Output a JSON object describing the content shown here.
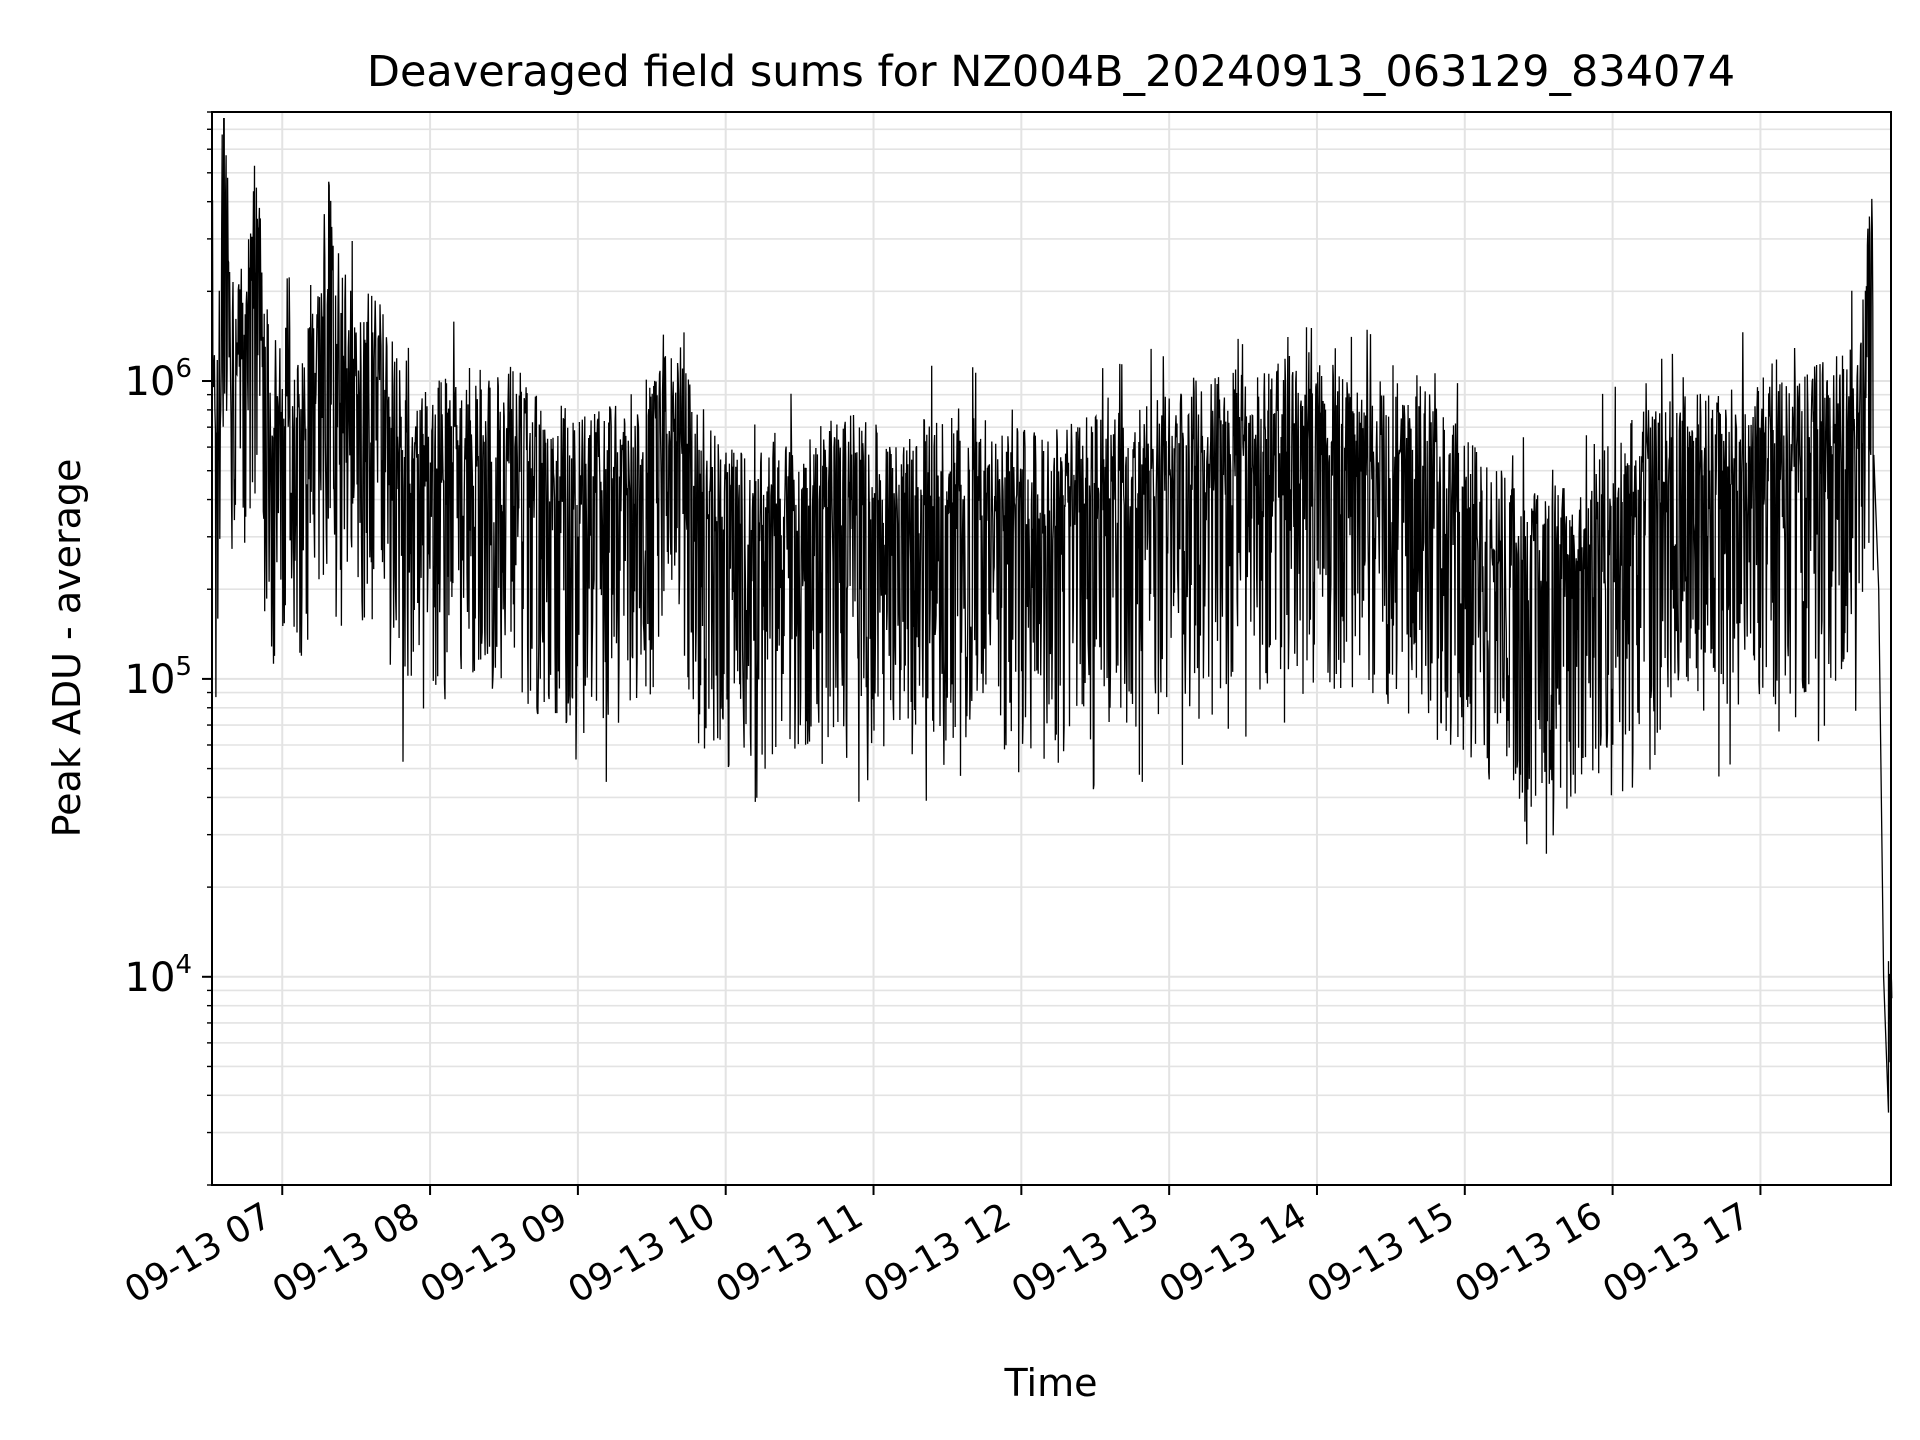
{
  "chart_data": {
    "type": "line",
    "title": "Deaveraged field sums for NZ004B_20240913_063129_834074",
    "xlabel": "Time",
    "ylabel": "Peak ADU - average",
    "yscale": "log",
    "ylim": [
      2000,
      8000000
    ],
    "xlim": [
      "09-13 06:31:29",
      "09-13 17:53:00"
    ],
    "grid": true,
    "legend": "none",
    "line_color": "#000000",
    "x_ticks": [
      {
        "label": "09-13 07",
        "hour": 7
      },
      {
        "label": "09-13 08",
        "hour": 8
      },
      {
        "label": "09-13 09",
        "hour": 9
      },
      {
        "label": "09-13 10",
        "hour": 10
      },
      {
        "label": "09-13 11",
        "hour": 11
      },
      {
        "label": "09-13 12",
        "hour": 12
      },
      {
        "label": "09-13 13",
        "hour": 13
      },
      {
        "label": "09-13 14",
        "hour": 14
      },
      {
        "label": "09-13 15",
        "hour": 15
      },
      {
        "label": "09-13 16",
        "hour": 16
      },
      {
        "label": "09-13 17",
        "hour": 17
      }
    ],
    "y_ticks": [
      {
        "base": "10",
        "exp": "4",
        "value": 10000
      },
      {
        "base": "10",
        "exp": "5",
        "value": 100000
      },
      {
        "base": "10",
        "exp": "6",
        "value": 1000000
      }
    ],
    "series": [
      {
        "x": [
          "09-13 06:32",
          "09-13 06:33",
          "09-13 06:36",
          "09-13 06:39",
          "09-13 06:42",
          "09-13 06:45",
          "09-13 06:50",
          "09-13 06:55",
          "09-13 07:00",
          "09-13 07:10",
          "09-13 07:20",
          "09-13 07:30",
          "09-13 07:40",
          "09-13 07:50",
          "09-13 08:00",
          "09-13 08:15",
          "09-13 08:30",
          "09-13 08:45",
          "09-13 09:00",
          "09-13 09:20",
          "09-13 09:40",
          "09-13 09:55",
          "09-13 10:10",
          "09-13 10:30",
          "09-13 10:50",
          "09-13 11:10",
          "09-13 11:30",
          "09-13 11:50",
          "09-13 12:10",
          "09-13 12:30",
          "09-13 12:50",
          "09-13 13:10",
          "09-13 13:30",
          "09-13 13:50",
          "09-13 14:10",
          "09-13 14:30",
          "09-13 14:50",
          "09-13 15:10",
          "09-13 15:30",
          "09-13 15:50",
          "09-13 16:10",
          "09-13 16:30",
          "09-13 16:50",
          "09-13 17:10",
          "09-13 17:30",
          "09-13 17:40",
          "09-13 17:45",
          "09-13 17:48",
          "09-13 17:50",
          "09-13 17:52"
        ],
        "y": [
          2000000,
          300000,
          5500000,
          1200000,
          900000,
          1500000,
          2300000,
          600000,
          700000,
          650000,
          1500000,
          800000,
          1000000,
          400000,
          450000,
          500000,
          550000,
          400000,
          350000,
          400000,
          600000,
          300000,
          250000,
          300000,
          350000,
          320000,
          350000,
          330000,
          300000,
          350000,
          380000,
          450000,
          500000,
          550000,
          500000,
          450000,
          400000,
          250000,
          200000,
          230000,
          350000,
          400000,
          420000,
          450000,
          550000,
          600000,
          2400000,
          200000,
          10000,
          3500
        ]
      }
    ]
  }
}
